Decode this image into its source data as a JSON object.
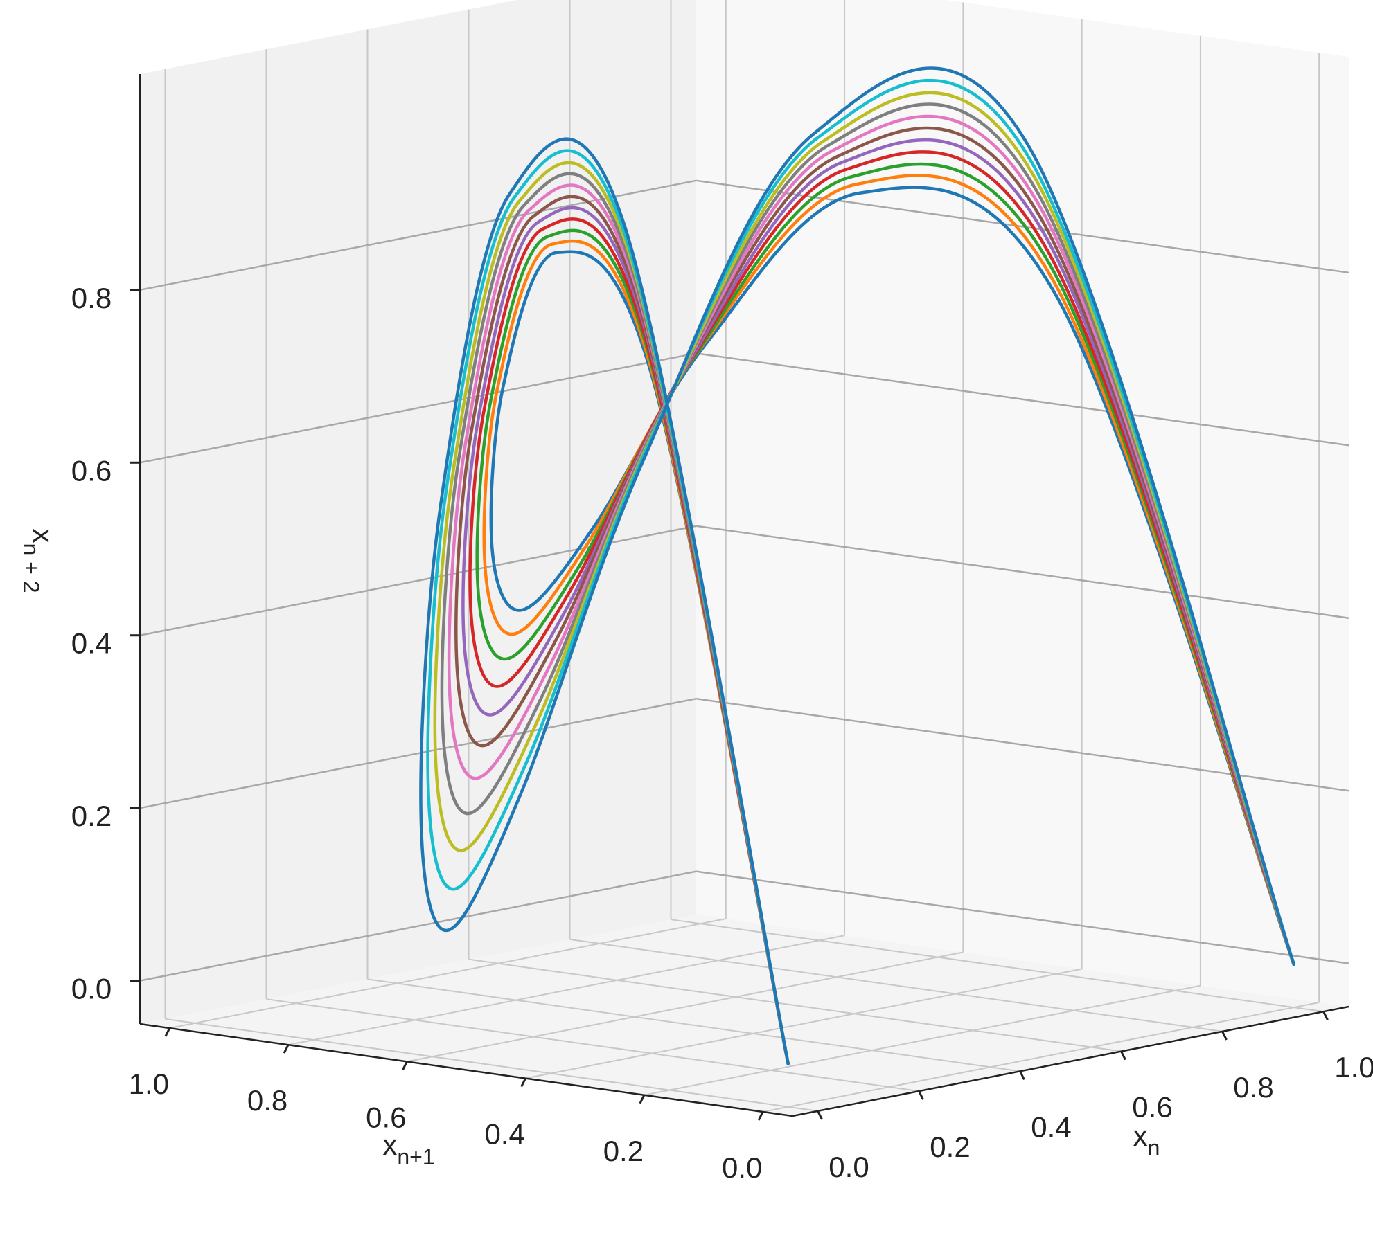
{
  "chart_data": {
    "type": "line3d",
    "xlabel": {
      "base": "x",
      "sub": "n"
    },
    "ylabel": {
      "base": "x",
      "sub": "n+1"
    },
    "zlabel": {
      "base": "x",
      "sub": "n + 2"
    },
    "x": [
      0,
      0.1,
      0.2,
      0.3,
      0.4,
      0.5,
      0.6,
      0.7,
      0.8,
      0.9,
      1
    ],
    "series": [
      {
        "color": "#1f77b4",
        "y": [
          0,
          0.315,
          0.56,
          0.735,
          0.84,
          0.875,
          0.84,
          0.735,
          0.56,
          0.315,
          0
        ],
        "z": [
          0,
          0.755,
          0.862,
          0.682,
          0.47,
          0.383,
          0.47,
          0.682,
          0.862,
          0.755,
          0
        ]
      },
      {
        "color": "#ff7f0e",
        "y": [
          0,
          0.32,
          0.568,
          0.746,
          0.852,
          0.888,
          0.852,
          0.746,
          0.568,
          0.32,
          0
        ],
        "z": [
          0,
          0.772,
          0.871,
          0.674,
          0.448,
          0.354,
          0.448,
          0.674,
          0.871,
          0.772,
          0
        ]
      },
      {
        "color": "#2ca02c",
        "y": [
          0,
          0.324,
          0.576,
          0.756,
          0.864,
          0.9,
          0.864,
          0.756,
          0.576,
          0.324,
          0
        ],
        "z": [
          0,
          0.788,
          0.879,
          0.664,
          0.423,
          0.324,
          0.423,
          0.664,
          0.879,
          0.788,
          0
        ]
      },
      {
        "color": "#d62728",
        "y": [
          0,
          0.329,
          0.584,
          0.767,
          0.876,
          0.913,
          0.876,
          0.767,
          0.584,
          0.329,
          0
        ],
        "z": [
          0,
          0.805,
          0.887,
          0.653,
          0.397,
          0.291,
          0.397,
          0.653,
          0.887,
          0.805,
          0
        ]
      },
      {
        "color": "#9467bd",
        "y": [
          0,
          0.333,
          0.592,
          0.777,
          0.888,
          0.925,
          0.888,
          0.777,
          0.592,
          0.333,
          0
        ],
        "z": [
          0,
          0.822,
          0.894,
          0.641,
          0.368,
          0.257,
          0.368,
          0.641,
          0.894,
          0.822,
          0
        ]
      },
      {
        "color": "#8c564b",
        "y": [
          0,
          0.338,
          0.6,
          0.788,
          0.9,
          0.938,
          0.9,
          0.788,
          0.6,
          0.338,
          0
        ],
        "z": [
          0,
          0.839,
          0.9,
          0.628,
          0.338,
          0.22,
          0.338,
          0.628,
          0.9,
          0.839,
          0
        ]
      },
      {
        "color": "#e377c2",
        "y": [
          0,
          0.342,
          0.608,
          0.798,
          0.912,
          0.95,
          0.912,
          0.798,
          0.608,
          0.342,
          0
        ],
        "z": [
          0,
          0.855,
          0.906,
          0.613,
          0.305,
          0.181,
          0.305,
          0.613,
          0.906,
          0.855,
          0
        ]
      },
      {
        "color": "#7f7f7f",
        "y": [
          0,
          0.347,
          0.616,
          0.809,
          0.924,
          0.963,
          0.924,
          0.809,
          0.616,
          0.347,
          0
        ],
        "z": [
          0,
          0.872,
          0.911,
          0.596,
          0.27,
          0.139,
          0.27,
          0.596,
          0.911,
          0.872,
          0
        ]
      },
      {
        "color": "#bcbd22",
        "y": [
          0,
          0.351,
          0.624,
          0.819,
          0.936,
          0.975,
          0.936,
          0.819,
          0.624,
          0.351,
          0
        ],
        "z": [
          0,
          0.888,
          0.915,
          0.578,
          0.234,
          0.095,
          0.234,
          0.578,
          0.915,
          0.888,
          0
        ]
      },
      {
        "color": "#17becf",
        "y": [
          0,
          0.356,
          0.632,
          0.83,
          0.948,
          0.988,
          0.948,
          0.83,
          0.632,
          0.356,
          0
        ],
        "z": [
          0,
          0.905,
          0.919,
          0.559,
          0.195,
          0.049,
          0.195,
          0.559,
          0.919,
          0.905,
          0
        ]
      },
      {
        "color": "#1f77b4",
        "y": [
          0,
          0.36,
          0.64,
          0.84,
          0.96,
          1,
          0.96,
          0.84,
          0.64,
          0.36,
          0
        ],
        "z": [
          0,
          0.922,
          0.922,
          0.538,
          0.154,
          0,
          0.154,
          0.538,
          0.922,
          0.922,
          0
        ]
      }
    ],
    "xlim": [
      -0.05,
      1.05
    ],
    "ylim": [
      -0.05,
      1.05
    ],
    "zlim": [
      -0.05,
      1.05
    ],
    "xticks": [
      {
        "value": 0,
        "label": "0.0"
      },
      0.2,
      0.4,
      0.6,
      0.8,
      {
        "value": 1,
        "label": "1.0"
      }
    ],
    "yticks": [
      {
        "value": 0,
        "label": "0.0"
      },
      0.2,
      0.4,
      0.6,
      0.8,
      {
        "value": 1,
        "label": "1.0"
      }
    ],
    "zticks": [
      {
        "value": 0,
        "label": "0.0"
      },
      0.2,
      0.4,
      0.6,
      0.8
    ],
    "grid": true
  }
}
